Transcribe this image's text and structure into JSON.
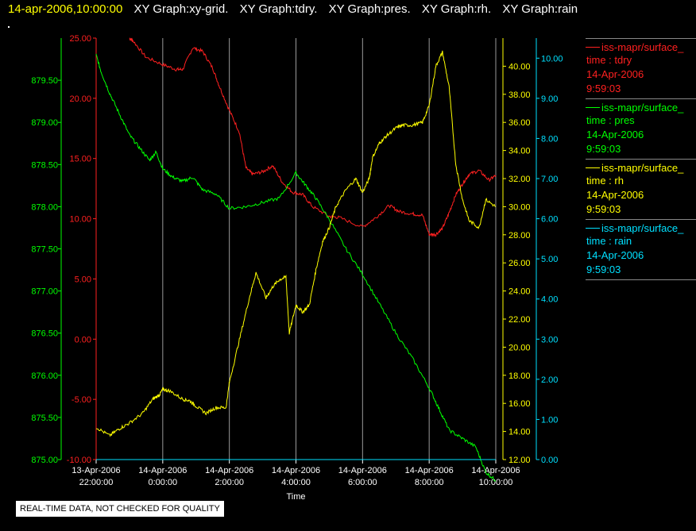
{
  "header": {
    "timestamp": "14-apr-2006,10:00:00",
    "graphs": [
      "XY Graph:xy-grid.",
      "XY Graph:tdry.",
      "XY Graph:pres.",
      "XY Graph:rh.",
      "XY Graph:rain"
    ]
  },
  "legend": [
    {
      "label": "iss-mapr/surface_",
      "field": "time : tdry",
      "date": "14-Apr-2006",
      "time": "9:59:03",
      "color": "#ff2020"
    },
    {
      "label": "iss-mapr/surface_",
      "field": "time : pres",
      "date": "14-Apr-2006",
      "time": "9:59:03",
      "color": "#00ff00"
    },
    {
      "label": "iss-mapr/surface_",
      "field": "time : rh",
      "date": "14-Apr-2006",
      "time": "9:59:03",
      "color": "#ffff00"
    },
    {
      "label": "iss-mapr/surface_",
      "field": "time : rain",
      "date": "14-Apr-2006",
      "time": "9:59:03",
      "color": "#00e0ff"
    }
  ],
  "footer": {
    "note": "REAL-TIME DATA, NOT CHECKED FOR QUALITY"
  },
  "chart_data": {
    "type": "line",
    "xlabel": "Time",
    "xlim": [
      -2,
      10
    ],
    "x_ticks": [
      {
        "x": -2,
        "date": "13-Apr-2006",
        "time": "22:00:00"
      },
      {
        "x": 0,
        "date": "14-Apr-2006",
        "time": "0:00:00"
      },
      {
        "x": 2,
        "date": "14-Apr-2006",
        "time": "2:00:00"
      },
      {
        "x": 4,
        "date": "14-Apr-2006",
        "time": "4:00:00"
      },
      {
        "x": 6,
        "date": "14-Apr-2006",
        "time": "6:00:00"
      },
      {
        "x": 8,
        "date": "14-Apr-2006",
        "time": "8:00:00"
      },
      {
        "x": 10,
        "date": "14-Apr-2006",
        "time": "10:00:00"
      }
    ],
    "grid": "vertical",
    "axes": [
      {
        "id": "pres",
        "color": "#00ff00",
        "range": [
          875,
          880
        ],
        "ticks": [
          "875.00",
          "875.50",
          "876.00",
          "876.50",
          "877.00",
          "877.50",
          "878.00",
          "878.50",
          "879.00",
          "879.50"
        ]
      },
      {
        "id": "tdry",
        "color": "#ff2020",
        "range": [
          -10,
          25
        ],
        "ticks": [
          "-10.00",
          "-5.00",
          "0.00",
          "5.00",
          "10.00",
          "15.00",
          "20.00",
          "25.00"
        ]
      },
      {
        "id": "rh",
        "color": "#ffff00",
        "range": [
          12,
          42
        ],
        "ticks": [
          "12.00",
          "14.00",
          "16.00",
          "18.00",
          "20.00",
          "22.00",
          "24.00",
          "26.00",
          "28.00",
          "30.00",
          "32.00",
          "34.00",
          "36.00",
          "38.00",
          "40.00"
        ]
      },
      {
        "id": "rain",
        "color": "#00e0ff",
        "range": [
          0,
          10.5
        ],
        "ticks": [
          "0.00",
          "1.00",
          "2.00",
          "3.00",
          "4.00",
          "5.00",
          "6.00",
          "7.00",
          "8.00",
          "9.00",
          "10.00"
        ]
      }
    ],
    "series": [
      {
        "axis": "tdry",
        "color": "#ff2020",
        "x": [
          -1.0,
          -0.9,
          -0.5,
          0,
          0.4,
          0.6,
          0.9,
          1.2,
          1.5,
          1.7,
          2.0,
          2.3,
          2.5,
          2.7,
          3.0,
          3.3,
          3.6,
          3.9,
          4.2,
          4.5,
          5.0,
          5.3,
          6.0,
          6.4,
          6.8,
          7.1,
          7.5,
          7.8,
          8.0,
          8.2,
          8.4,
          8.6,
          8.8,
          9.0,
          9.2,
          9.5,
          9.8,
          10.0
        ],
        "y": [
          25,
          24.8,
          23.4,
          22.8,
          22.4,
          22.4,
          24.2,
          23.9,
          22.5,
          21.0,
          19.0,
          17.2,
          14.2,
          13.7,
          13.9,
          14.4,
          13.0,
          12.2,
          12.0,
          11.0,
          10.2,
          10.1,
          9.3,
          10.1,
          11.1,
          10.6,
          10.4,
          10.3,
          8.7,
          8.7,
          9.2,
          10.5,
          12.0,
          12.9,
          13.7,
          14.0,
          13.2,
          13.6
        ]
      },
      {
        "axis": "pres",
        "color": "#00ff00",
        "x": [
          -2.0,
          -1.85,
          -1.6,
          -1.3,
          -1.0,
          -0.7,
          -0.4,
          -0.2,
          0.0,
          0.3,
          0.6,
          0.9,
          1.2,
          1.6,
          2.0,
          2.5,
          3.0,
          3.5,
          4.0,
          4.3,
          4.6,
          5.0,
          5.5,
          6.0,
          6.5,
          7.0,
          7.5,
          8.0,
          8.3,
          8.6,
          9.0,
          9.4,
          9.7,
          10.0
        ],
        "y": [
          879.8,
          879.6,
          879.35,
          879.1,
          878.85,
          878.7,
          878.55,
          878.65,
          878.45,
          878.35,
          878.3,
          878.35,
          878.2,
          878.15,
          877.98,
          878.0,
          878.05,
          878.1,
          878.4,
          878.25,
          878.1,
          877.85,
          877.5,
          877.2,
          876.85,
          876.5,
          876.2,
          875.85,
          875.6,
          875.35,
          875.25,
          875.15,
          874.85,
          874.75
        ]
      },
      {
        "axis": "rh",
        "color": "#ffff00",
        "x": [
          -2.0,
          -1.6,
          -1.3,
          -1.0,
          -0.6,
          -0.3,
          -0.1,
          0.0,
          0.2,
          0.6,
          0.8,
          1.0,
          1.3,
          1.6,
          1.9,
          2.0,
          2.3,
          2.6,
          2.8,
          3.1,
          3.3,
          3.5,
          3.7,
          3.8,
          4.0,
          4.2,
          4.4,
          4.6,
          4.8,
          5.0,
          5.2,
          5.5,
          5.8,
          6.0,
          6.2,
          6.3,
          6.5,
          6.7,
          7.0,
          7.2,
          7.5,
          7.8,
          8.0,
          8.2,
          8.4,
          8.6,
          8.8,
          9.0,
          9.2,
          9.5,
          9.7,
          10.0
        ],
        "y": [
          14.3,
          13.7,
          14.2,
          14.6,
          15.3,
          16.3,
          16.6,
          17.0,
          16.9,
          16.3,
          16.2,
          15.8,
          15.3,
          15.7,
          15.7,
          17.5,
          20.5,
          23.5,
          25.3,
          23.5,
          24.3,
          24.8,
          25.0,
          21.0,
          23.0,
          22.5,
          23.0,
          25.5,
          27.5,
          28.5,
          30.0,
          31.2,
          32.0,
          31.0,
          32.0,
          33.5,
          34.5,
          35.0,
          35.6,
          35.8,
          35.8,
          36.0,
          37.2,
          40.0,
          41.0,
          38.5,
          33.0,
          30.5,
          29.0,
          28.5,
          30.5,
          30.0
        ]
      },
      {
        "axis": "rain",
        "color": "#00e0ff",
        "x": [
          -2,
          10
        ],
        "y": [
          0,
          0
        ]
      }
    ]
  }
}
